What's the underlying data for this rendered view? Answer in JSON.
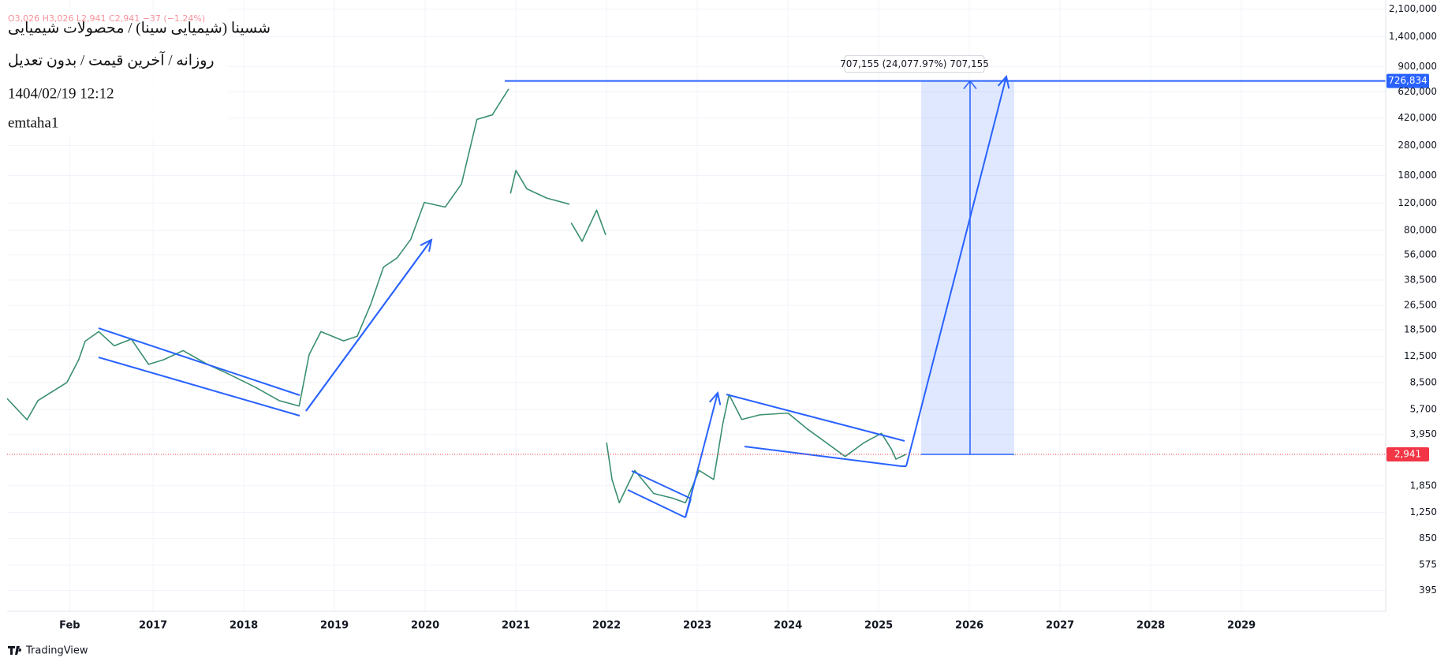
{
  "chart_data": {
    "type": "line",
    "title": "شسینا (شیمیایی سینا) / محصولات شیمیایی",
    "subtitle": "روزانه / آخرین قیمت / بدون تعدیل",
    "timestamp": "1404/02/19 12:12",
    "author": "emtaha1",
    "ohlc": "O3,026 H3,026 L2,941 C2,941 −37 (−1.24%)",
    "watermark": "TradingView",
    "log_scale": true,
    "grid": true,
    "xlim": [
      2015.39,
      2030.59
    ],
    "ylim": [
      290,
      2400000
    ],
    "xticks": [
      {
        "value": 2016.08,
        "label": "Feb"
      },
      2017,
      2018,
      2019,
      2020,
      2021,
      2022,
      2023,
      2024,
      2025,
      2026,
      2027,
      2028,
      2029
    ],
    "yticks": [
      395,
      575,
      850,
      {
        "value": 1250,
        "label": "1,250"
      },
      {
        "value": 1850,
        "label": "1,850"
      },
      {
        "value": 3950,
        "label": "3,950"
      },
      {
        "value": 5700,
        "label": "5,700"
      },
      {
        "value": 8500,
        "label": "8,500"
      },
      {
        "value": 12500,
        "label": "12,500"
      },
      {
        "value": 18500,
        "label": "18,500"
      },
      {
        "value": 26500,
        "label": "26,500"
      },
      {
        "value": 38500,
        "label": "38,500"
      },
      {
        "value": 56000,
        "label": "56,000"
      },
      {
        "value": 80000,
        "label": "80,000"
      },
      {
        "value": 120000,
        "label": "120,000"
      },
      {
        "value": 180000,
        "label": "180,000"
      },
      {
        "value": 280000,
        "label": "280,000"
      },
      {
        "value": 420000,
        "label": "420,000"
      },
      {
        "value": 620000,
        "label": "620,000"
      },
      {
        "value": 900000,
        "label": "900,000"
      },
      {
        "value": 1400000,
        "label": "1,400,000"
      },
      {
        "value": 2100000,
        "label": "2,100,000"
      }
    ],
    "last_price": {
      "value": 2941,
      "label": "2,941"
    },
    "target_price": {
      "value": 726834,
      "label": "726,834"
    },
    "measure_label": "707,155 (24,077.97%) 707,155",
    "series": [
      {
        "color": "#3a8f6e",
        "x": [
          2015.39,
          2015.61,
          2015.73,
          2016.05,
          2016.18,
          2016.25,
          2016.4,
          2016.57,
          2016.76,
          2016.95,
          2017.12,
          2017.33,
          2017.6,
          2017.82,
          2018.13,
          2018.39,
          2018.61,
          2018.72,
          2018.85,
          2019.1,
          2019.25,
          2019.4,
          2019.54,
          2019.69,
          2019.84,
          2019.99,
          2020.22,
          2020.4,
          2020.57,
          2020.74,
          2020.92,
          null,
          2020.94,
          2021.0,
          2021.12,
          2021.34,
          2021.59,
          null,
          2021.61,
          2021.73,
          2021.89,
          2021.99,
          null,
          2022.0,
          2022.06,
          2022.14,
          2022.31,
          2022.52,
          2022.72,
          2022.87,
          2023.02,
          2023.18,
          2023.28,
          2023.35,
          2023.49,
          2023.69,
          2024.0,
          2024.21,
          2024.42,
          2024.63,
          2024.84,
          2025.03,
          2025.14,
          2025.19,
          2025.3
        ],
        "values": [
          6700,
          4900,
          6500,
          8500,
          11900,
          15600,
          18000,
          14600,
          16100,
          11100,
          11900,
          13600,
          11100,
          9700,
          7900,
          6500,
          6000,
          12800,
          18000,
          15700,
          16800,
          27000,
          46600,
          53400,
          70100,
          121000,
          113000,
          159000,
          412000,
          441000,
          646000,
          null,
          138000,
          194000,
          148000,
          129000,
          118000,
          null,
          89500,
          68200,
          108000,
          75000,
          null,
          3500,
          2030,
          1440,
          2320,
          1650,
          1545,
          1440,
          2320,
          2030,
          4590,
          7110,
          4920,
          5270,
          5410,
          4290,
          3500,
          2850,
          3500,
          4010,
          3180,
          2740,
          2941
        ]
      }
    ]
  }
}
